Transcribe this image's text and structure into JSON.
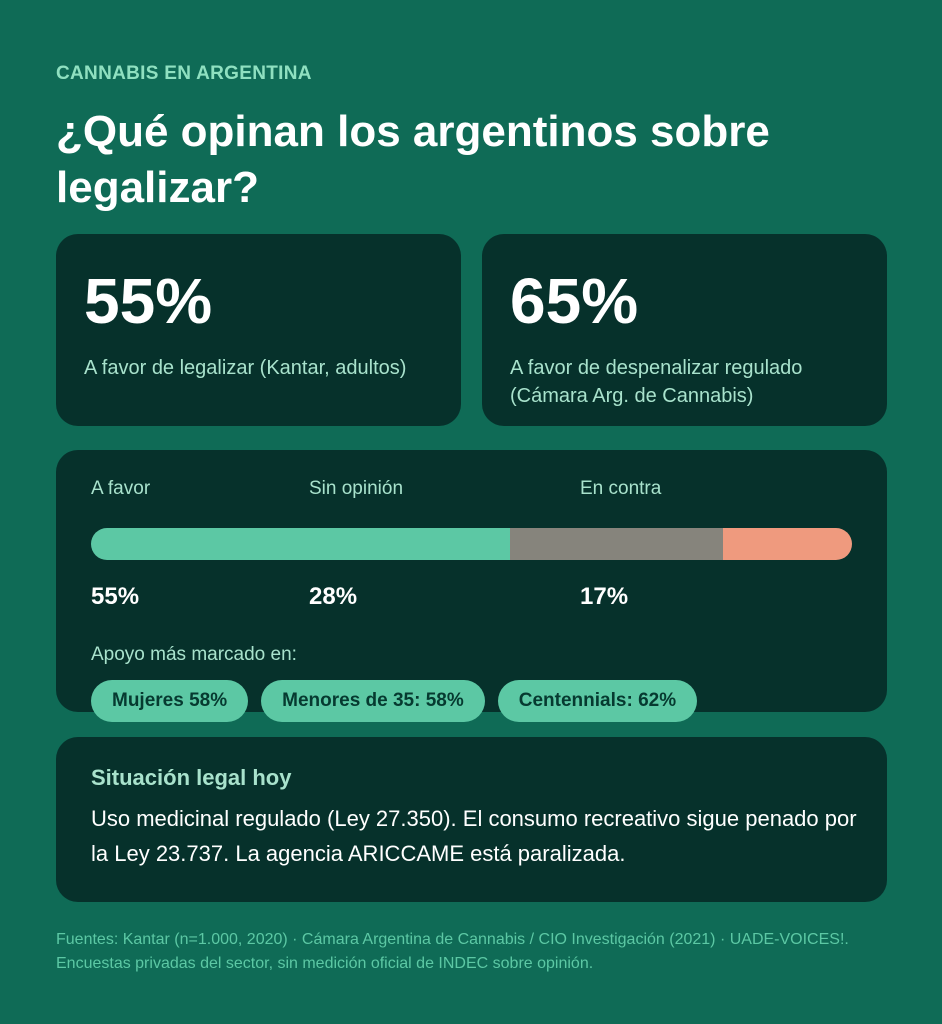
{
  "eyebrow": "CANNABIS EN ARGENTINA",
  "headline": "¿Qué opinan los argentinos sobre legalizar?",
  "stats": [
    {
      "value": "55%",
      "description": "A favor de legalizar (Kantar, adultos)"
    },
    {
      "value": "65%",
      "description": "A favor de despenalizar regulado (Cámara Arg. de Cannabis)"
    }
  ],
  "opinion": {
    "segments": [
      {
        "label": "A favor",
        "percent_text": "55%",
        "value": 55,
        "color": "#5cc8a4"
      },
      {
        "label": "Sin opinión",
        "percent_text": "28%",
        "value": 28,
        "color": "#86847c"
      },
      {
        "label": "En contra",
        "percent_text": "17%",
        "value": 17,
        "color": "#ef9a7e"
      }
    ],
    "support_label": "Apoyo más marcado en:",
    "chips": [
      "Mujeres 58%",
      "Menores de 35: 58%",
      "Centennials: 62%"
    ]
  },
  "legal": {
    "title": "Situación legal hoy",
    "text": "Uso medicinal regulado (Ley 27.350). El consumo recreativo sigue penado por la Ley 23.737. La agencia ARICCAME está paralizada."
  },
  "sources": "Fuentes: Kantar (n=1.000, 2020) · Cámara Argentina de Cannabis / CIO Investigación (2021) · UADE-VOICES!. Encuestas privadas del sector, sin medición oficial de INDEC sobre opinión."
}
